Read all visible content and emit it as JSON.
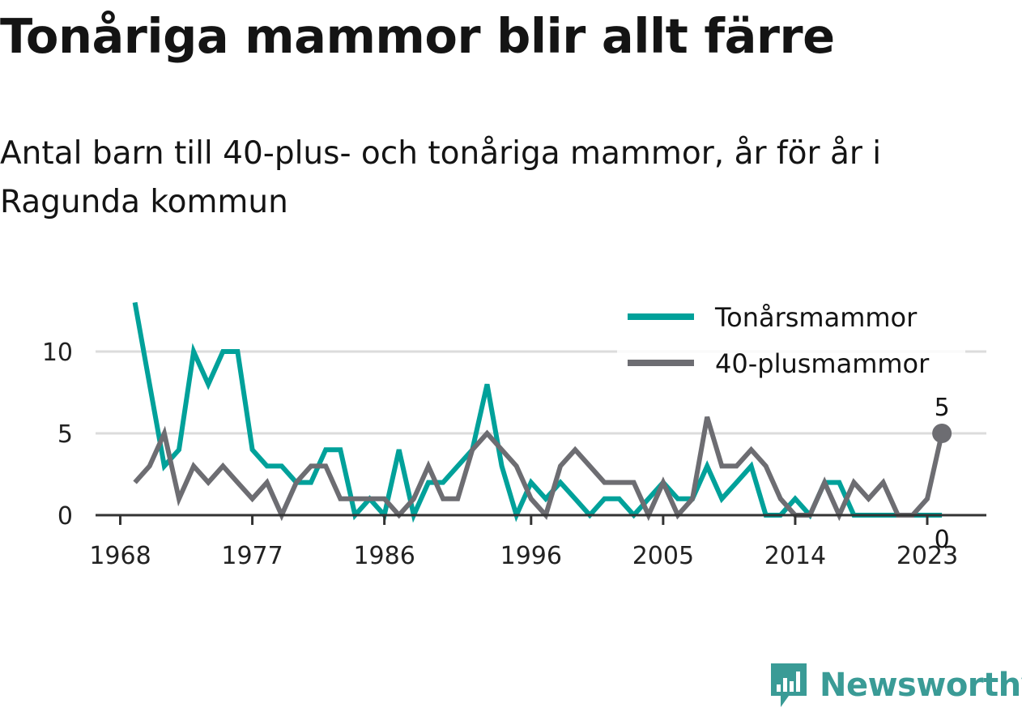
{
  "title": "Tonåriga mammor blir allt färre",
  "subtitle": "Antal barn till 40-plus- och tonåriga mammor, år för år i Ragunda kommun",
  "brand": "Newsworthy",
  "chart_data": {
    "type": "line",
    "x_ticks": [
      1968,
      1977,
      1986,
      1996,
      2005,
      2014,
      2023
    ],
    "y_ticks": [
      0,
      5,
      10
    ],
    "xlim": [
      1967,
      2027
    ],
    "ylim": [
      0,
      13
    ],
    "grid": "horizontal",
    "legend_placement": "top-right",
    "x": [
      1969,
      1970,
      1971,
      1972,
      1973,
      1974,
      1975,
      1976,
      1977,
      1978,
      1979,
      1980,
      1981,
      1982,
      1983,
      1984,
      1985,
      1986,
      1987,
      1988,
      1989,
      1990,
      1991,
      1992,
      1993,
      1994,
      1995,
      1996,
      1997,
      1998,
      1999,
      2000,
      2001,
      2002,
      2003,
      2004,
      2005,
      2006,
      2007,
      2008,
      2009,
      2010,
      2011,
      2012,
      2013,
      2014,
      2015,
      2016,
      2017,
      2018,
      2019,
      2020,
      2021,
      2022,
      2023,
      2024
    ],
    "series": [
      {
        "name": "Tonårsmammor",
        "color": "#00a19a",
        "values": [
          13,
          8,
          3,
          4,
          10,
          8,
          10,
          10,
          4,
          3,
          3,
          2,
          2,
          4,
          4,
          0,
          1,
          0,
          4,
          0,
          2,
          2,
          3,
          4,
          8,
          3,
          0,
          2,
          1,
          2,
          1,
          0,
          1,
          1,
          0,
          1,
          2,
          1,
          1,
          3,
          1,
          2,
          3,
          0,
          0,
          1,
          0,
          2,
          2,
          0,
          0,
          0,
          0,
          0,
          0,
          0
        ],
        "end_label": "0"
      },
      {
        "name": "40-plusmammor",
        "color": "#6d6d72",
        "values": [
          2,
          3,
          5,
          1,
          3,
          2,
          3,
          2,
          1,
          2,
          0,
          2,
          3,
          3,
          1,
          1,
          1,
          1,
          0,
          1,
          3,
          1,
          1,
          4,
          5,
          4,
          3,
          1,
          0,
          3,
          4,
          3,
          2,
          2,
          2,
          0,
          2,
          0,
          1,
          6,
          3,
          3,
          4,
          3,
          1,
          0,
          0,
          2,
          0,
          2,
          1,
          2,
          0,
          0,
          1,
          5
        ],
        "end_label": "5"
      }
    ]
  }
}
